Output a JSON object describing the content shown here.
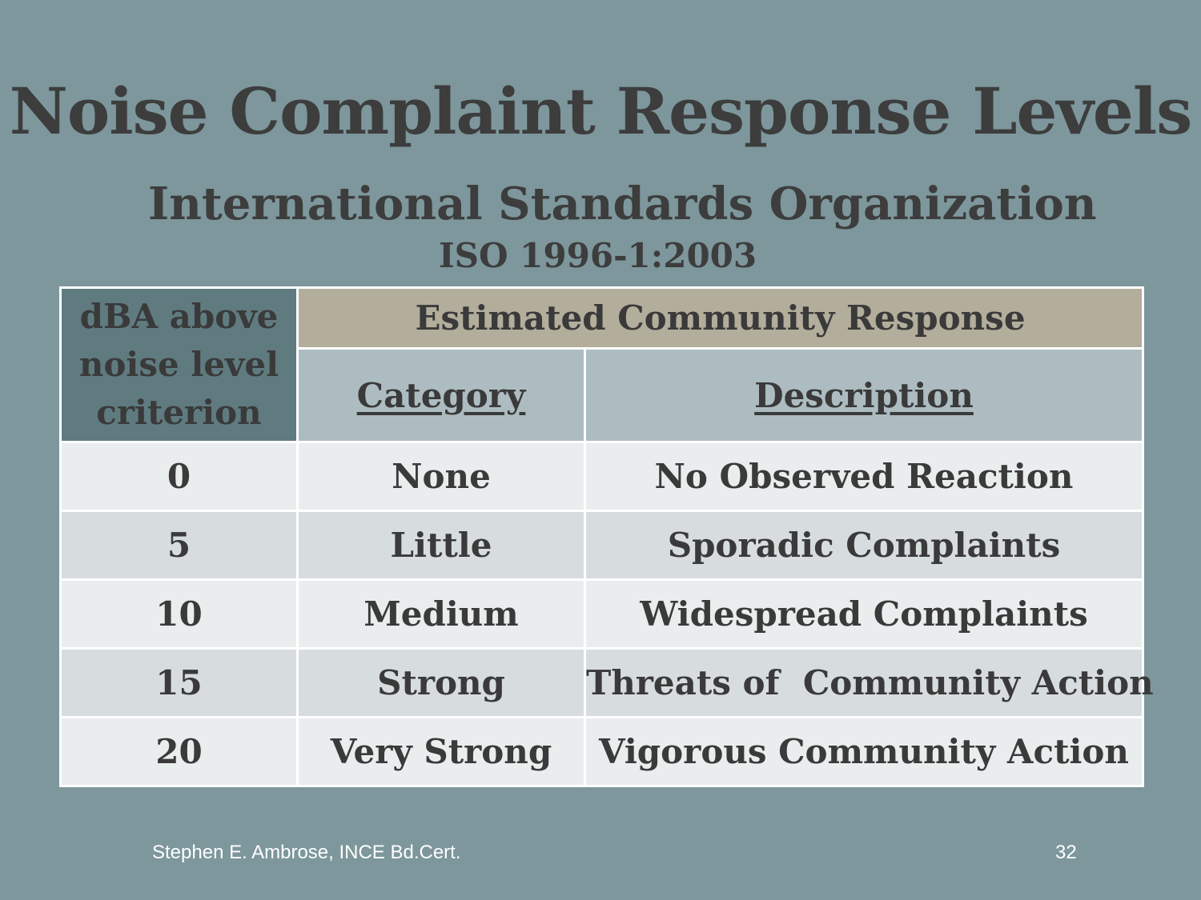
{
  "slide": {
    "title": "Noise Complaint Response Levels",
    "subtitle": "International Standards Organization",
    "standard": "ISO 1996-1:2003"
  },
  "table": {
    "dba_header": [
      "dBA above",
      "noise level",
      "criterion"
    ],
    "group_header": "Estimated Community Response",
    "category_header": "Category",
    "description_header": "Description",
    "rows": [
      {
        "dba": "0",
        "category": "None",
        "description": "No Observed Reaction"
      },
      {
        "dba": "5",
        "category": "Little",
        "description": "Sporadic Complaints"
      },
      {
        "dba": "10",
        "category": "Medium",
        "description": "Widespread Complaints"
      },
      {
        "dba": "15",
        "category": "Strong",
        "description": "Threats of  Community Action"
      },
      {
        "dba": "20",
        "category": "Very Strong",
        "description": "Vigorous Community Action"
      }
    ]
  },
  "footer": {
    "author": "Stephen E. Ambrose, INCE Bd.Cert.",
    "page_number": "32"
  }
}
